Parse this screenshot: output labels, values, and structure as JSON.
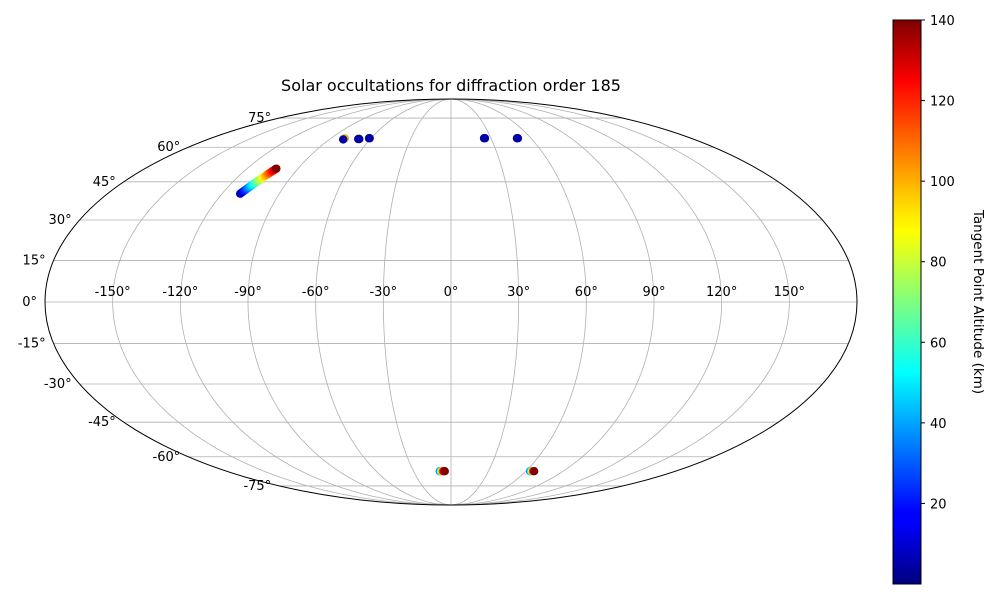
{
  "chart_data": {
    "type": "scatter",
    "projection": "mollweide",
    "title": "Solar occultations for diffraction order 185",
    "xlabel": "",
    "ylabel": "",
    "grid": true,
    "lon_ticks": [
      -150,
      -120,
      -90,
      -60,
      -30,
      0,
      30,
      60,
      90,
      120,
      150
    ],
    "lon_tick_labels": [
      "-150°",
      "-120°",
      "-90°",
      "-60°",
      "-30°",
      "0°",
      "30°",
      "60°",
      "90°",
      "120°",
      "150°"
    ],
    "lat_ticks": [
      -75,
      -60,
      -45,
      -30,
      -15,
      0,
      15,
      30,
      45,
      60,
      75
    ],
    "lat_tick_labels": [
      "-75°",
      "-60°",
      "-45°",
      "-30°",
      "-15°",
      "0°",
      "15°",
      "30°",
      "45°",
      "60°",
      "75°"
    ],
    "colorbar": {
      "label": "Tangent Point Altitude (km)",
      "range": [
        0,
        140
      ],
      "colormap": "jet",
      "ticks": [
        20,
        40,
        60,
        80,
        100,
        120,
        140
      ],
      "tick_labels": [
        "20",
        "40",
        "60",
        "80",
        "100",
        "120",
        "140"
      ]
    },
    "series": [
      {
        "points": [
          {
            "lon": -110.5,
            "lat": 40.2,
            "alt": 5
          },
          {
            "lon": -110.2,
            "lat": 40.6,
            "alt": 10
          },
          {
            "lon": -109.9,
            "lat": 41.0,
            "alt": 15
          },
          {
            "lon": -109.6,
            "lat": 41.4,
            "alt": 20
          },
          {
            "lon": -109.3,
            "lat": 41.8,
            "alt": 25
          },
          {
            "lon": -109.0,
            "lat": 42.2,
            "alt": 30
          },
          {
            "lon": -108.7,
            "lat": 42.6,
            "alt": 35
          },
          {
            "lon": -108.4,
            "lat": 43.0,
            "alt": 40
          },
          {
            "lon": -108.1,
            "lat": 43.4,
            "alt": 45
          },
          {
            "lon": -107.8,
            "lat": 43.8,
            "alt": 50
          },
          {
            "lon": -107.5,
            "lat": 44.2,
            "alt": 55
          },
          {
            "lon": -107.2,
            "lat": 44.6,
            "alt": 60
          },
          {
            "lon": -106.9,
            "lat": 45.0,
            "alt": 65
          },
          {
            "lon": -106.6,
            "lat": 45.4,
            "alt": 70
          },
          {
            "lon": -106.3,
            "lat": 45.8,
            "alt": 75
          },
          {
            "lon": -106.0,
            "lat": 46.2,
            "alt": 80
          },
          {
            "lon": -105.7,
            "lat": 46.6,
            "alt": 85
          },
          {
            "lon": -105.4,
            "lat": 47.0,
            "alt": 90
          },
          {
            "lon": -105.1,
            "lat": 47.4,
            "alt": 95
          },
          {
            "lon": -104.8,
            "lat": 47.8,
            "alt": 100
          },
          {
            "lon": -104.5,
            "lat": 48.2,
            "alt": 105
          },
          {
            "lon": -104.2,
            "lat": 48.6,
            "alt": 110
          },
          {
            "lon": -103.9,
            "lat": 49.0,
            "alt": 115
          },
          {
            "lon": -103.6,
            "lat": 49.4,
            "alt": 120
          },
          {
            "lon": -103.3,
            "lat": 49.8,
            "alt": 125
          },
          {
            "lon": -103.0,
            "lat": 50.2,
            "alt": 130
          },
          {
            "lon": -102.7,
            "lat": 50.5,
            "alt": 140
          },
          {
            "lon": -79.5,
            "lat": 64.2,
            "alt": 100
          },
          {
            "lon": -79.8,
            "lat": 63.7,
            "alt": 5
          },
          {
            "lon": -69.0,
            "lat": 64.2,
            "alt": 100
          },
          {
            "lon": -69.0,
            "lat": 63.9,
            "alt": 5
          },
          {
            "lon": -68.2,
            "lat": 63.9,
            "alt": 5
          },
          {
            "lon": -61.5,
            "lat": 64.3,
            "alt": 5
          },
          {
            "lon": -61.0,
            "lat": 64.3,
            "alt": 5
          },
          {
            "lon": 24.8,
            "lat": 64.3,
            "alt": 5
          },
          {
            "lon": 25.5,
            "lat": 64.3,
            "alt": 5
          },
          {
            "lon": 49.5,
            "lat": 64.3,
            "alt": 5
          },
          {
            "lon": 50.2,
            "lat": 64.3,
            "alt": 5
          },
          {
            "lon": -9.0,
            "lat": -67.0,
            "alt": 35
          },
          {
            "lon": -8.2,
            "lat": -67.0,
            "alt": 55
          },
          {
            "lon": -7.4,
            "lat": -67.0,
            "alt": 90
          },
          {
            "lon": -6.6,
            "lat": -67.0,
            "alt": 110
          },
          {
            "lon": -5.8,
            "lat": -67.0,
            "alt": 125
          },
          {
            "lon": -5.0,
            "lat": -67.0,
            "alt": 140
          },
          {
            "lon": 63.5,
            "lat": -67.0,
            "alt": 35
          },
          {
            "lon": 64.3,
            "lat": -67.0,
            "alt": 55
          },
          {
            "lon": 65.1,
            "lat": -67.0,
            "alt": 90
          },
          {
            "lon": 65.9,
            "lat": -67.0,
            "alt": 115
          },
          {
            "lon": 66.7,
            "lat": -67.0,
            "alt": 140
          }
        ]
      }
    ]
  }
}
